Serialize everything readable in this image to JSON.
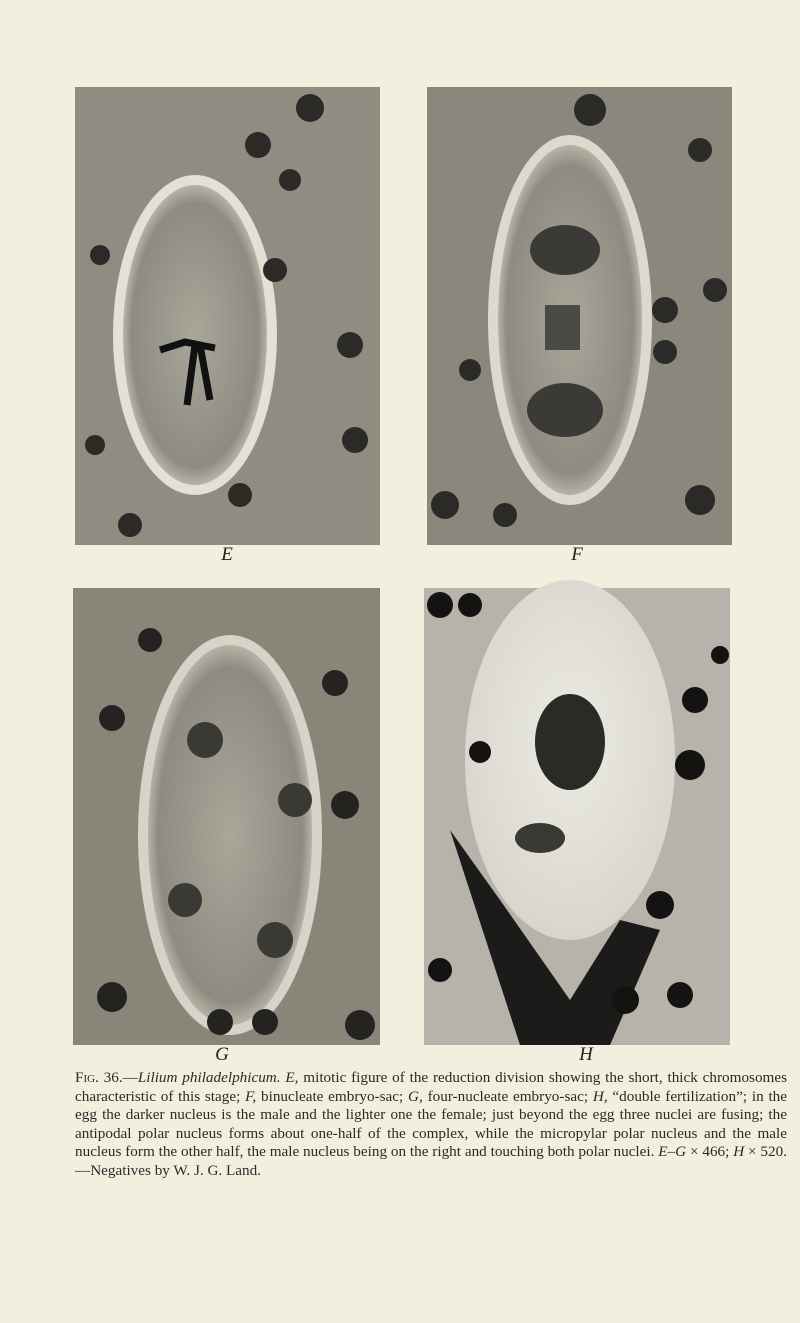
{
  "figure": {
    "panels": [
      {
        "label": "E"
      },
      {
        "label": "F"
      },
      {
        "label": "G"
      },
      {
        "label": "H"
      }
    ],
    "caption": {
      "runs": [
        "Fig. 36.—",
        "Lilium philadelphicum.",
        "E,",
        "mitotic figure of the reduction division showing the short, thick chromosomes characteristic of this stage;",
        "F,",
        "binucleate embryo-sac;",
        "G,",
        "four-nucleate embryo-sac;",
        "H,",
        "“double fertilization”; in the egg the darker nucleus is the male and the lighter one the female; just beyond the egg three nuclei are fusing; the antipodal polar nucleus forms about one-half of the complex, while the micropylar polar nucleus and the male nucleus form the other half, the male nucleus being on the right and touching both polar nuclei.",
        "E–G",
        "× 466;",
        "H",
        "× 520.—Negatives by W. J. G. Land."
      ]
    }
  }
}
